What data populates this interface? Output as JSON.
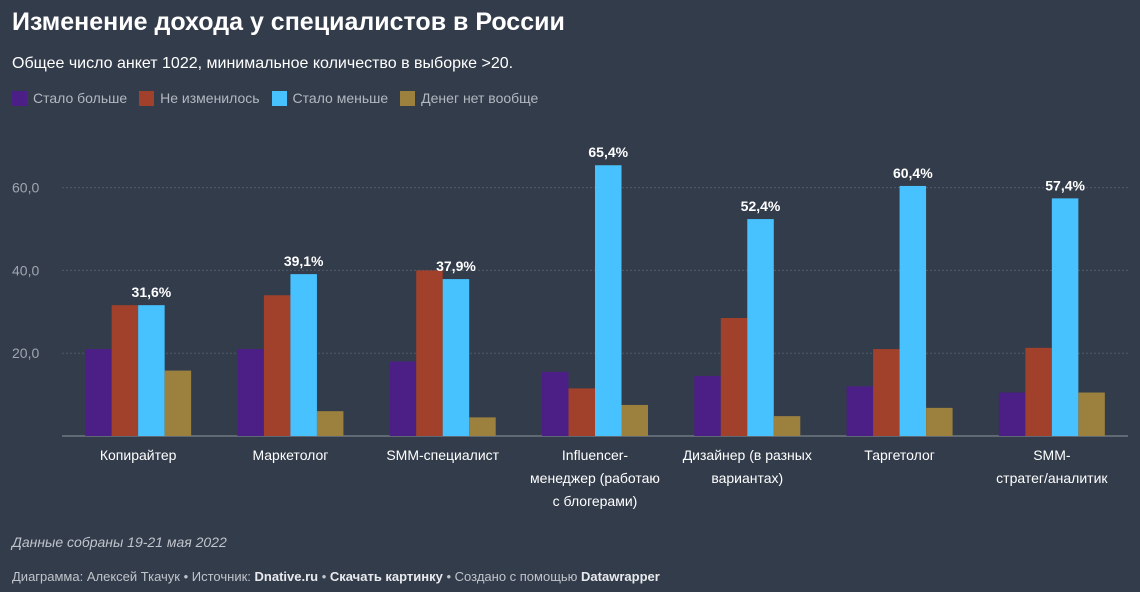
{
  "title": "Изменение дохода у специалистов в России",
  "subtitle": "Общее число анкет 1022, минимальное количество в выборке >20.",
  "note": "Данные собраны 19-21 мая 2022",
  "footer": {
    "author_prefix": "Диаграмма: Алексей Ткачук",
    "sep1": " • ",
    "source_prefix": "Источник: ",
    "source": "Dnative.ru",
    "sep2": " • ",
    "download": "Скачать картинку",
    "sep3": " • ",
    "created_prefix": "Создано с помощью ",
    "tool": "Datawrapper"
  },
  "chart_data": {
    "type": "bar",
    "title": "Изменение дохода у специалистов в России",
    "subtitle": "Общее число анкет 1022, минимальное количество в выборке >20.",
    "categories": [
      [
        "Копирайтер"
      ],
      [
        "Маркетолог"
      ],
      [
        "SMM-специалист"
      ],
      [
        "Influencer-",
        "менеджер (работаю",
        "с блогерами)"
      ],
      [
        "Дизайнер (в разных",
        "вариантах)"
      ],
      [
        "Таргетолог"
      ],
      [
        "SMM-",
        "стратег/аналитик"
      ]
    ],
    "series": [
      {
        "name": "Стало больше",
        "color": "#4b1f86",
        "values": [
          21.0,
          21.0,
          18.0,
          15.5,
          14.5,
          12.0,
          10.5
        ]
      },
      {
        "name": "Не изменилось",
        "color": "#a1412b",
        "values": [
          31.6,
          34.0,
          40.0,
          11.5,
          28.5,
          21.0,
          21.3
        ]
      },
      {
        "name": "Стало меньше",
        "color": "#48c2ff",
        "values": [
          31.6,
          39.1,
          37.9,
          65.4,
          52.4,
          60.4,
          57.4
        ]
      },
      {
        "name": "Денег нет вообще",
        "color": "#9b803e",
        "values": [
          15.8,
          6.0,
          4.5,
          7.5,
          4.8,
          6.8,
          10.5
        ]
      }
    ],
    "data_labels": [
      "31,6%",
      "39,1%",
      "37,9%",
      "65,4%",
      "52,4%",
      "60,4%",
      "57,4%"
    ],
    "labeled_series": 2,
    "yticks": [
      20,
      40,
      60
    ],
    "ytick_labels": [
      "20,0",
      "40,0",
      "60,0"
    ],
    "ylim": [
      0,
      68
    ],
    "grid": true,
    "legend_position": "top-left",
    "xlabel": "",
    "ylabel": ""
  }
}
